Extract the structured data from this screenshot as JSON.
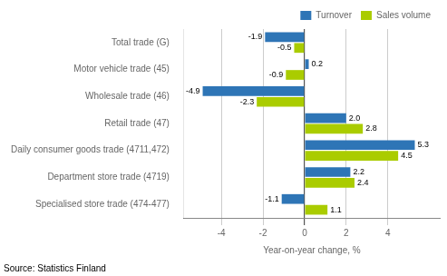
{
  "chart_data": {
    "type": "bar",
    "orientation": "horizontal",
    "categories": [
      "Total trade (G)",
      "Motor vehicle trade (45)",
      "Wholesale trade (46)",
      "Retail trade (47)",
      "Daily consumer goods trade (4711,472)",
      "Department store trade (4719)",
      "Specialised store trade (474-477)"
    ],
    "series": [
      {
        "name": "Turnover",
        "color": "#2E75B6",
        "values": [
          -1.9,
          0.2,
          -4.9,
          2.0,
          5.3,
          2.2,
          -1.1
        ],
        "value_labels": [
          "-1.9",
          "0.2",
          "-4.9",
          "2.0",
          "5.3",
          "2.2",
          "-1.1"
        ]
      },
      {
        "name": "Sales volume",
        "color": "#AACC00",
        "values": [
          -0.5,
          -0.9,
          -2.3,
          2.8,
          4.5,
          2.4,
          1.1
        ],
        "value_labels": [
          "-0.5",
          "-0.9",
          "-2.3",
          "2.8",
          "4.5",
          "2.4",
          "1.1"
        ]
      }
    ],
    "xlabel": "Year-on-year change, %",
    "xlim": [
      -5.8,
      6.5
    ],
    "xticks": [
      -4,
      -2,
      0,
      2,
      4
    ],
    "grid": true,
    "legend": "upper right",
    "data_labels": true,
    "source": "Source: Statistics Finland"
  }
}
